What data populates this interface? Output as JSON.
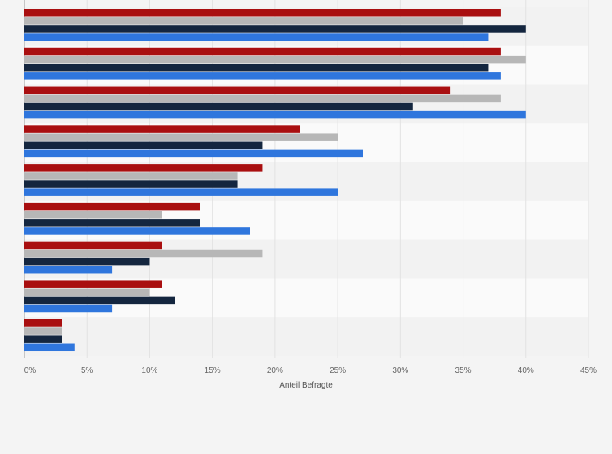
{
  "chart_data": {
    "type": "bar",
    "orientation": "horizontal",
    "categories": [
      "",
      "",
      "",
      "",
      "",
      "",
      "",
      "",
      ""
    ],
    "series": [
      {
        "color": "#a90f10",
        "values": [
          38,
          38,
          34,
          22,
          19,
          14,
          11,
          11,
          3
        ]
      },
      {
        "color": "#b7b7b7",
        "values": [
          35,
          40,
          38,
          25,
          17,
          11,
          19,
          10,
          3
        ]
      },
      {
        "color": "#14263f",
        "values": [
          40,
          37,
          31,
          19,
          17,
          14,
          10,
          12,
          3
        ]
      },
      {
        "color": "#2f76dd",
        "values": [
          37,
          38,
          40,
          27,
          25,
          18,
          7,
          7,
          4
        ]
      }
    ],
    "xlabel": "Anteil Befragte",
    "ylabel": "",
    "xlim": [
      0,
      45
    ],
    "xticks": [
      0,
      5,
      10,
      15,
      20,
      25,
      30,
      35,
      40,
      45
    ],
    "xtick_labels": [
      "0%",
      "5%",
      "10%",
      "15%",
      "20%",
      "25%",
      "30%",
      "35%",
      "40%",
      "45%"
    ],
    "grid": true,
    "legend": "none"
  }
}
